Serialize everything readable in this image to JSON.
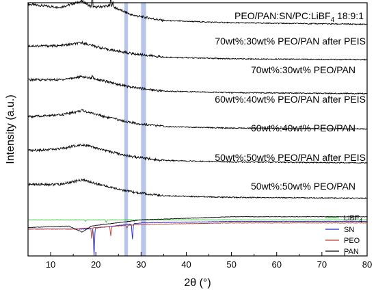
{
  "chart_data": {
    "type": "line",
    "title": "",
    "xlabel": "2θ (°)",
    "ylabel": "Intensity (a.u.)",
    "xlim": [
      5,
      80
    ],
    "x_ticks": [
      10,
      20,
      30,
      40,
      50,
      60,
      70,
      80
    ],
    "grid": false,
    "y_tick_labels_shown": false,
    "header": {
      "text": "PEO/PAN:SN/PC:LiBF",
      "sub": "4",
      "suffix": " 18:9:1"
    },
    "highlight_bands": [
      {
        "x_range": [
          26.3,
          27.1
        ],
        "color": "#b7c6e8"
      },
      {
        "x_range": [
          30.0,
          31.1
        ],
        "color": "#b7c6e8"
      }
    ],
    "stacked_curve_labels": [
      "70wt%:30wt% PEO/PAN after PEIS",
      "70wt%:30wt% PEO/PAN",
      "60wt%:40wt% PEO/PAN after PEIS",
      "60wt%:40wt% PEO/PAN",
      "50wt%:50wt% PEO/PAN after PEIS",
      "50wt%:50wt% PEO/PAN"
    ],
    "stacked_curves": [
      {
        "label_index": 0,
        "color": "#000000",
        "baseline": 6.1,
        "shape": [
          [
            5,
            0.65
          ],
          [
            12,
            0.55
          ],
          [
            17,
            0.75
          ],
          [
            19.2,
            0.55
          ],
          [
            23.3,
            0.6
          ],
          [
            28,
            0.3
          ],
          [
            35,
            0.12
          ],
          [
            50,
            0.05
          ],
          [
            80,
            0.0
          ]
        ],
        "peaks": [
          {
            "x": 19.2,
            "h": 0.55
          },
          {
            "x": 23.3,
            "h": 0.28
          },
          {
            "x": 23.8,
            "h": 0.18
          }
        ]
      },
      {
        "label_index": 1,
        "color": "#000000",
        "baseline": 4.95,
        "shape": [
          [
            5,
            0.45
          ],
          [
            12,
            0.45
          ],
          [
            17,
            0.55
          ],
          [
            22,
            0.35
          ],
          [
            28,
            0.2
          ],
          [
            35,
            0.08
          ],
          [
            50,
            0.03
          ],
          [
            80,
            0.0
          ]
        ],
        "peaks": []
      },
      {
        "label_index": 2,
        "color": "#000000",
        "baseline": 3.85,
        "shape": [
          [
            5,
            0.45
          ],
          [
            12,
            0.45
          ],
          [
            17,
            0.55
          ],
          [
            19.3,
            0.5
          ],
          [
            22,
            0.4
          ],
          [
            28,
            0.2
          ],
          [
            35,
            0.08
          ],
          [
            50,
            0.03
          ],
          [
            80,
            0.0
          ]
        ],
        "peaks": [
          {
            "x": 19.3,
            "h": 0.1
          }
        ]
      },
      {
        "label_index": 3,
        "color": "#000000",
        "baseline": 2.7,
        "shape": [
          [
            5,
            0.4
          ],
          [
            12,
            0.45
          ],
          [
            17,
            0.6
          ],
          [
            22,
            0.4
          ],
          [
            28,
            0.2
          ],
          [
            35,
            0.08
          ],
          [
            50,
            0.03
          ],
          [
            80,
            0.0
          ]
        ],
        "peaks": []
      },
      {
        "label_index": 4,
        "color": "#000000",
        "baseline": 1.6,
        "shape": [
          [
            5,
            0.4
          ],
          [
            12,
            0.45
          ],
          [
            17,
            0.6
          ],
          [
            22,
            0.4
          ],
          [
            28,
            0.2
          ],
          [
            35,
            0.08
          ],
          [
            50,
            0.03
          ],
          [
            80,
            0.0
          ]
        ],
        "peaks": []
      },
      {
        "label_index": 5,
        "color": "#000000",
        "baseline": 0.45,
        "shape": [
          [
            5,
            0.45
          ],
          [
            12,
            0.45
          ],
          [
            17,
            0.6
          ],
          [
            22,
            0.4
          ],
          [
            28,
            0.2
          ],
          [
            35,
            0.08
          ],
          [
            50,
            0.03
          ],
          [
            80,
            0.0
          ]
        ],
        "peaks": []
      }
    ],
    "reference_series": [
      {
        "name": "LiBF",
        "name_sub": "4",
        "color": "#3ec43e",
        "baseline": -0.25,
        "shape": [
          [
            5,
            0.0
          ],
          [
            80,
            0.0
          ]
        ],
        "dips": [
          {
            "x": 17.7,
            "h": 0.05
          },
          {
            "x": 22.3,
            "h": 0.08
          },
          {
            "x": 28.5,
            "h": 0.06
          }
        ]
      },
      {
        "name": "SN",
        "name_sub": "",
        "color": "#2222cc",
        "baseline": -0.55,
        "shape": [
          [
            5,
            0.0
          ],
          [
            18,
            0.0
          ],
          [
            30,
            0.2
          ],
          [
            50,
            0.25
          ],
          [
            80,
            0.25
          ]
        ],
        "dips": [
          {
            "x": 19.6,
            "h": 0.9
          },
          {
            "x": 28.1,
            "h": 0.5
          }
        ]
      },
      {
        "name": "PEO",
        "name_sub": "",
        "color": "#c0392b",
        "baseline": -0.55,
        "shape": [
          [
            5,
            0.0
          ],
          [
            15,
            0.0
          ],
          [
            30,
            0.15
          ],
          [
            50,
            0.2
          ],
          [
            80,
            0.2
          ]
        ],
        "dips": [
          {
            "x": 19.1,
            "h": 0.35
          },
          {
            "x": 23.3,
            "h": 0.3
          },
          {
            "x": 26.9,
            "h": 0.08
          }
        ]
      },
      {
        "name": "PAN",
        "name_sub": "",
        "color": "#000000",
        "baseline": -0.5,
        "shape": [
          [
            5,
            0.0
          ],
          [
            14,
            0.05
          ],
          [
            17,
            -0.15
          ],
          [
            19,
            0.05
          ],
          [
            30,
            0.25
          ],
          [
            50,
            0.35
          ],
          [
            80,
            0.35
          ]
        ],
        "dips": []
      }
    ]
  }
}
